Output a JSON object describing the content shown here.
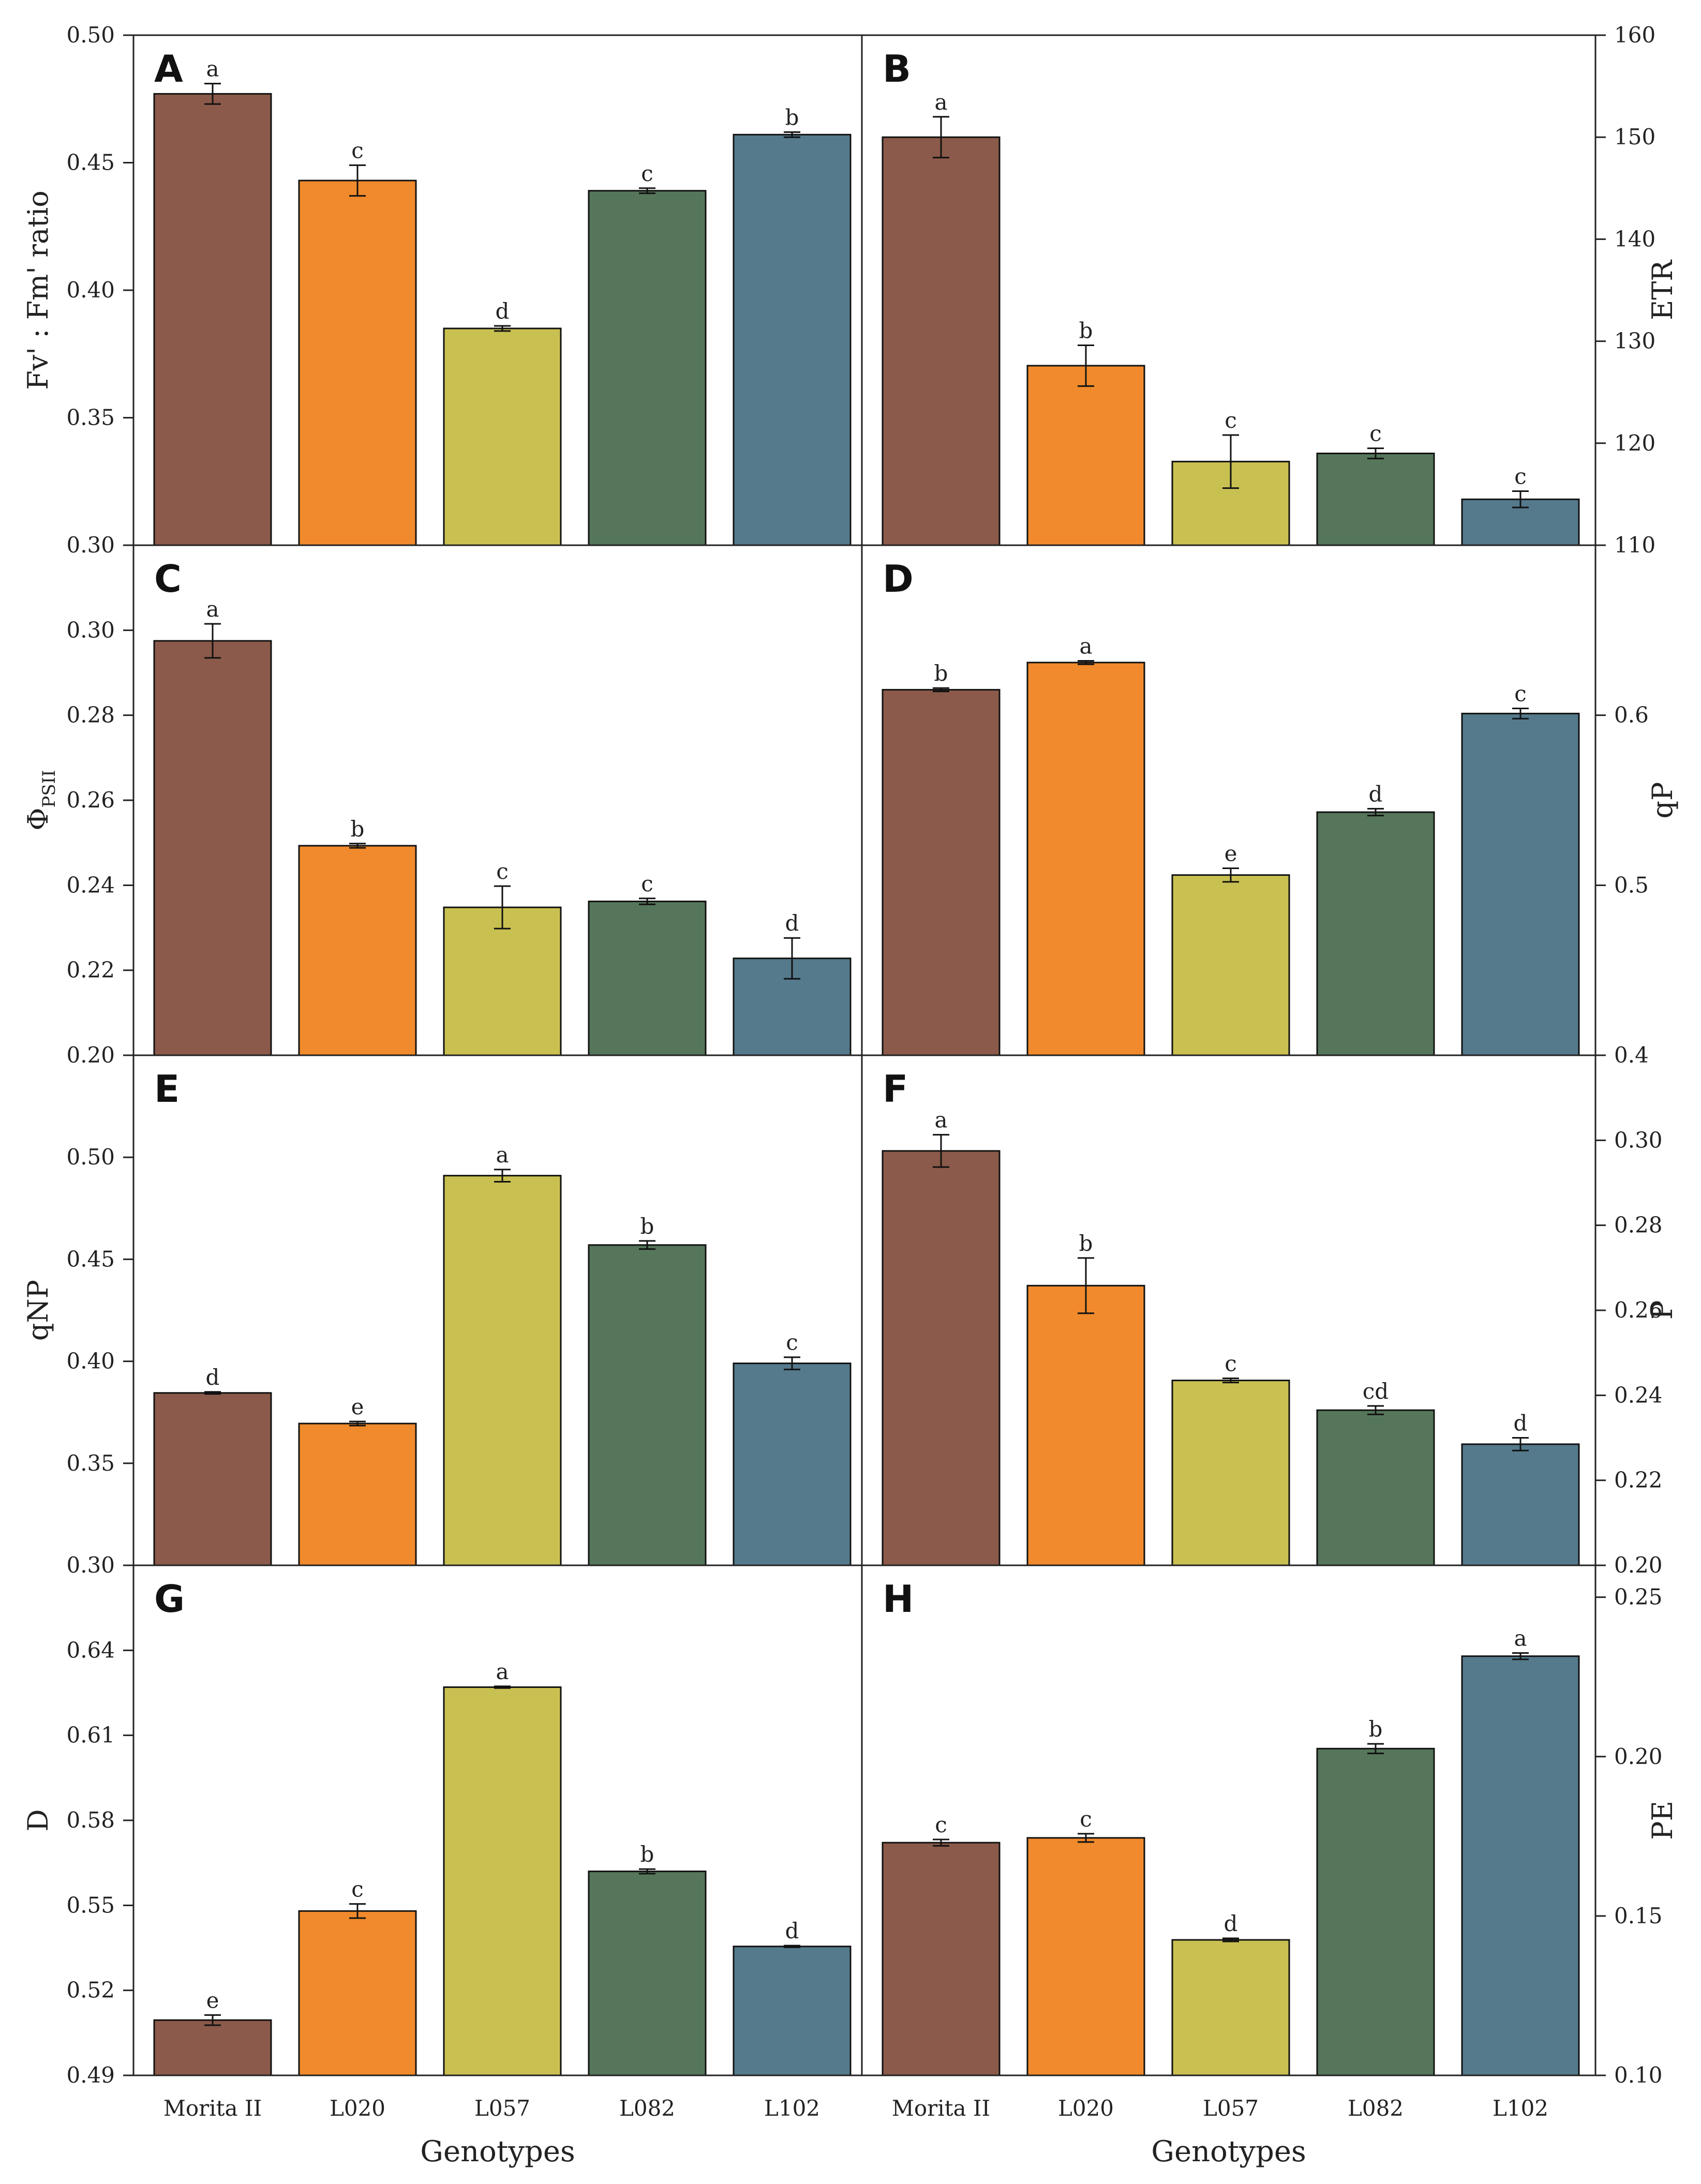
{
  "colors": {
    "Morita II": "#8b5a4a",
    "L020": "#f08a2c",
    "L057": "#c9c052",
    "L082": "#55765a",
    "L102": "#557a8c",
    "frame": "#222222"
  },
  "x_axis_title": "Genotypes",
  "chart_data": [
    {
      "type": "bar",
      "panel": "A",
      "column": "left",
      "ylabel": "Fv' : Fm' ratio",
      "ylabel_sub": "",
      "ylim": [
        0.3,
        0.5
      ],
      "yticks": [
        0.3,
        0.35,
        0.4,
        0.45,
        0.5
      ],
      "ytick_labels": [
        "0.30",
        "0.35",
        "0.40",
        "0.45",
        "0.50"
      ],
      "categories": [
        "Morita II",
        "L020",
        "L057",
        "L082",
        "L102"
      ],
      "values": [
        0.477,
        0.443,
        0.385,
        0.439,
        0.461
      ],
      "errors": [
        0.004,
        0.006,
        0.001,
        0.001,
        0.001
      ],
      "letters": [
        "a",
        "c",
        "d",
        "c",
        "b"
      ]
    },
    {
      "type": "bar",
      "panel": "B",
      "column": "right",
      "ylabel": "ETR",
      "ylabel_sub": "",
      "ylim": [
        110,
        160
      ],
      "yticks": [
        110,
        120,
        130,
        140,
        150,
        160
      ],
      "ytick_labels": [
        "110",
        "120",
        "130",
        "140",
        "150",
        "160"
      ],
      "categories": [
        "Morita II",
        "L020",
        "L057",
        "L082",
        "L102"
      ],
      "values": [
        150.0,
        127.6,
        118.2,
        119.0,
        114.5
      ],
      "errors": [
        2.0,
        2.0,
        2.6,
        0.5,
        0.8
      ],
      "letters": [
        "a",
        "b",
        "c",
        "c",
        "c"
      ]
    },
    {
      "type": "bar",
      "panel": "C",
      "column": "left",
      "ylabel": "Φ",
      "ylabel_sub": "PSII",
      "ylim": [
        0.2,
        0.32
      ],
      "yticks": [
        0.2,
        0.22,
        0.24,
        0.26,
        0.28,
        0.3
      ],
      "ytick_labels": [
        "0.20",
        "0.22",
        "0.24",
        "0.26",
        "0.28",
        "0.30"
      ],
      "categories": [
        "Morita II",
        "L020",
        "L057",
        "L082",
        "L102"
      ],
      "values": [
        0.2975,
        0.2493,
        0.2348,
        0.2362,
        0.2228
      ],
      "errors": [
        0.004,
        0.0005,
        0.005,
        0.0007,
        0.0048
      ],
      "letters": [
        "a",
        "b",
        "c",
        "c",
        "d"
      ]
    },
    {
      "type": "bar",
      "panel": "D",
      "column": "right",
      "ylabel": "qP",
      "ylabel_sub": "",
      "ylim": [
        0.4,
        0.7
      ],
      "yticks": [
        0.4,
        0.5,
        0.6
      ],
      "ytick_labels": [
        "0.4",
        "0.5",
        "0.6"
      ],
      "categories": [
        "Morita II",
        "L020",
        "L057",
        "L082",
        "L102"
      ],
      "values": [
        0.615,
        0.631,
        0.506,
        0.543,
        0.601
      ],
      "errors": [
        0.001,
        0.001,
        0.004,
        0.002,
        0.003
      ],
      "letters": [
        "b",
        "a",
        "e",
        "d",
        "c"
      ]
    },
    {
      "type": "bar",
      "panel": "E",
      "column": "left",
      "ylabel": "qNP",
      "ylabel_sub": "",
      "ylim": [
        0.3,
        0.55
      ],
      "yticks": [
        0.3,
        0.35,
        0.4,
        0.45,
        0.5
      ],
      "ytick_labels": [
        "0.30",
        "0.35",
        "0.40",
        "0.45",
        "0.50"
      ],
      "categories": [
        "Morita II",
        "L020",
        "L057",
        "L082",
        "L102"
      ],
      "values": [
        0.3845,
        0.3695,
        0.491,
        0.457,
        0.399
      ],
      "errors": [
        0.0005,
        0.001,
        0.003,
        0.002,
        0.003
      ],
      "letters": [
        "d",
        "e",
        "a",
        "b",
        "c"
      ]
    },
    {
      "type": "bar",
      "panel": "F",
      "column": "right",
      "ylabel": "P",
      "ylabel_sub": "",
      "ylim": [
        0.2,
        0.32
      ],
      "yticks": [
        0.2,
        0.22,
        0.24,
        0.26,
        0.28,
        0.3
      ],
      "ytick_labels": [
        "0.20",
        "0.22",
        "0.24",
        "0.26",
        "0.28",
        "0.30"
      ],
      "categories": [
        "Morita II",
        "L020",
        "L057",
        "L082",
        "L102"
      ],
      "values": [
        0.2975,
        0.2658,
        0.2435,
        0.2365,
        0.2285
      ],
      "errors": [
        0.0038,
        0.0065,
        0.0005,
        0.001,
        0.0015
      ],
      "letters": [
        "a",
        "b",
        "c",
        "cd",
        "d"
      ]
    },
    {
      "type": "bar",
      "panel": "G",
      "column": "left",
      "ylabel": "D",
      "ylabel_sub": "",
      "ylim": [
        0.49,
        0.67
      ],
      "yticks": [
        0.49,
        0.52,
        0.55,
        0.58,
        0.61,
        0.64
      ],
      "ytick_labels": [
        "0.49",
        "0.52",
        "0.55",
        "0.58",
        "0.61",
        "0.64"
      ],
      "categories": [
        "Morita II",
        "L020",
        "L057",
        "L082",
        "L102"
      ],
      "values": [
        0.5095,
        0.548,
        0.627,
        0.562,
        0.5355
      ],
      "errors": [
        0.0018,
        0.0025,
        0.0003,
        0.0008,
        0.0003
      ],
      "letters": [
        "e",
        "c",
        "a",
        "b",
        "d"
      ]
    },
    {
      "type": "bar",
      "panel": "H",
      "column": "right",
      "ylabel": "PE",
      "ylabel_sub": "",
      "ylim": [
        0.1,
        0.26
      ],
      "yticks": [
        0.1,
        0.15,
        0.2,
        0.25
      ],
      "ytick_labels": [
        "0.10",
        "0.15",
        "0.20",
        "0.25"
      ],
      "categories": [
        "Morita II",
        "L020",
        "L057",
        "L082",
        "L102"
      ],
      "values": [
        0.173,
        0.1745,
        0.1425,
        0.2025,
        0.2315
      ],
      "errors": [
        0.001,
        0.0013,
        0.0005,
        0.0015,
        0.001
      ],
      "letters": [
        "c",
        "c",
        "d",
        "b",
        "a"
      ]
    }
  ]
}
